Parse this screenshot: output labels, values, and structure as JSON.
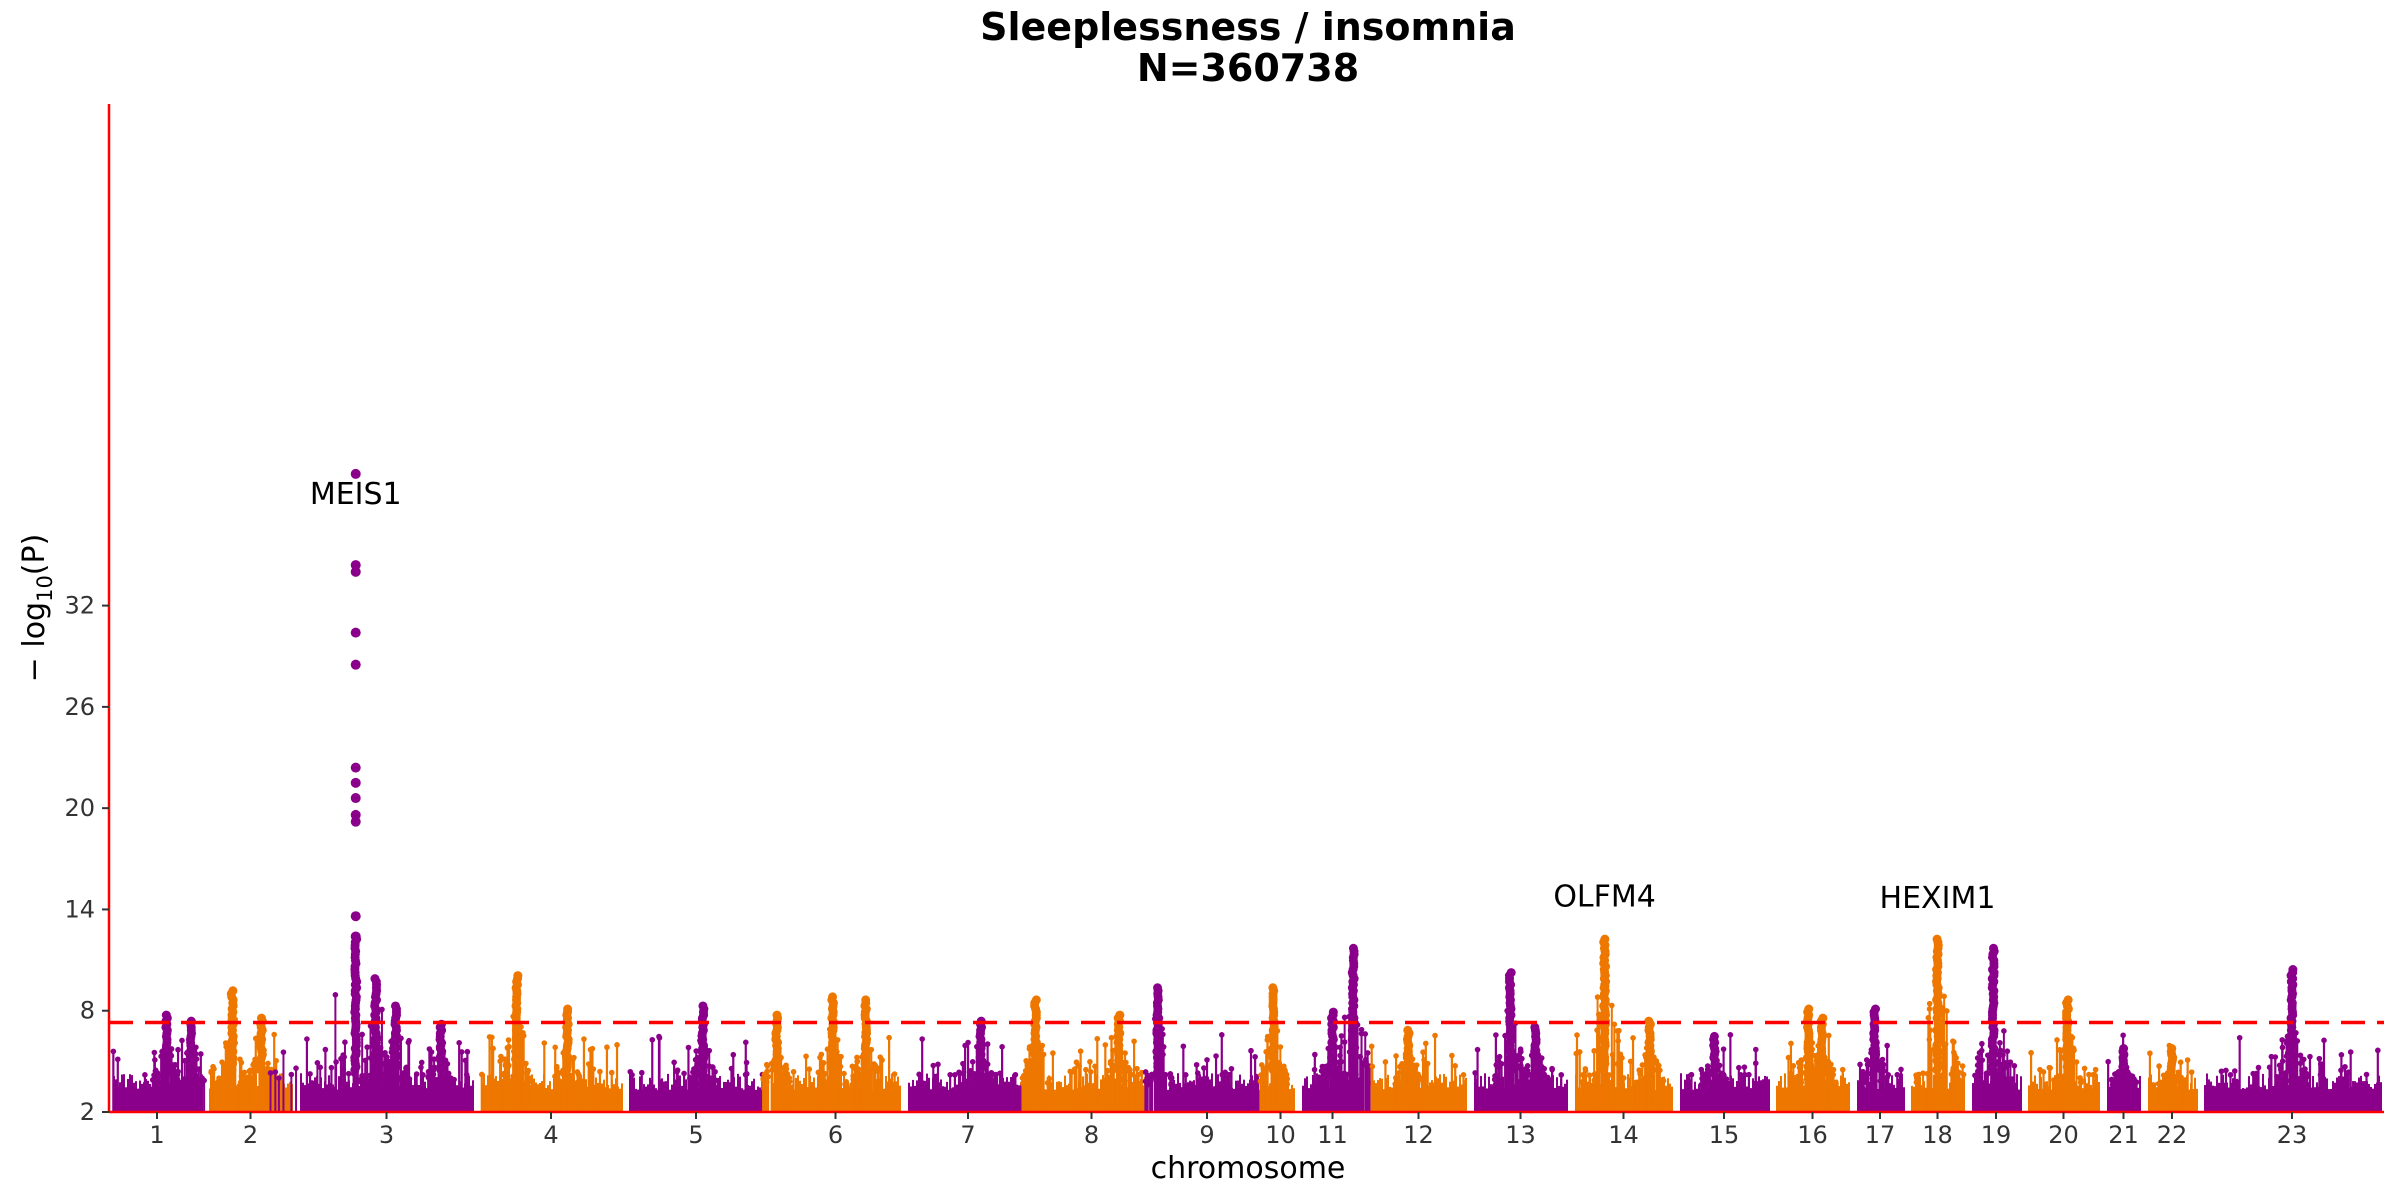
{
  "chart_data": {
    "type": "scatter",
    "subtype": "manhattan",
    "title": "Sleeplessness / insomnia",
    "subtitle": "N=360738",
    "xlabel": "chromosome",
    "ylabel": "− log10(P)",
    "ylabel_parts": {
      "prefix": "− log",
      "sub": "10",
      "suffix": "(P)"
    },
    "ylim": [
      2,
      40
    ],
    "yticks": [
      2,
      8,
      14,
      20,
      26,
      32
    ],
    "significance_threshold": 7.3,
    "threshold_line": "dashed",
    "colors": {
      "odd": "#8b008b",
      "even": "#ee7700",
      "threshold": "#ff0000",
      "axis": "#ff0000"
    },
    "grid": false,
    "chromosomes": [
      {
        "label": "1",
        "peaks": [
          {
            "pos": 0.6,
            "p": 7.8
          },
          {
            "pos": 0.85,
            "p": 7.4
          }
        ]
      },
      {
        "label": "2",
        "peaks": [
          {
            "pos": 0.3,
            "p": 9.3
          },
          {
            "pos": 0.62,
            "p": 7.6
          }
        ]
      },
      {
        "label": "3",
        "peaks": [
          {
            "pos": 0.33,
            "p": 39.8
          },
          {
            "pos": 0.44,
            "p": 9.9
          },
          {
            "pos": 0.55,
            "p": 8.4
          },
          {
            "pos": 0.8,
            "p": 7.3
          }
        ]
      },
      {
        "label": "4",
        "peaks": [
          {
            "pos": 0.27,
            "p": 10.1
          },
          {
            "pos": 0.61,
            "p": 8.1
          }
        ]
      },
      {
        "label": "5",
        "peaks": [
          {
            "pos": 0.55,
            "p": 8.3
          }
        ]
      },
      {
        "label": "6",
        "peaks": [
          {
            "pos": 0.07,
            "p": 7.9
          },
          {
            "pos": 0.48,
            "p": 8.9
          },
          {
            "pos": 0.72,
            "p": 8.8
          }
        ]
      },
      {
        "label": "7",
        "peaks": [
          {
            "pos": 0.6,
            "p": 7.4
          }
        ]
      },
      {
        "label": "8",
        "peaks": [
          {
            "pos": 0.03,
            "p": 8.7
          },
          {
            "pos": 0.73,
            "p": 7.9
          }
        ]
      },
      {
        "label": "9",
        "peaks": [
          {
            "pos": 0.06,
            "p": 9.4
          }
        ]
      },
      {
        "label": "10",
        "peaks": [
          {
            "pos": 0.3,
            "p": 9.5
          }
        ]
      },
      {
        "label": "11",
        "peaks": [
          {
            "pos": 0.5,
            "p": 8.0
          },
          {
            "pos": 0.8,
            "p": 11.8
          }
        ]
      },
      {
        "label": "12",
        "peaks": [
          {
            "pos": 0.4,
            "p": 6.9
          }
        ]
      },
      {
        "label": "13",
        "peaks": [
          {
            "pos": 0.4,
            "p": 10.3
          },
          {
            "pos": 0.65,
            "p": 7.1
          }
        ]
      },
      {
        "label": "14",
        "peaks": [
          {
            "pos": 0.32,
            "p": 13.0
          },
          {
            "pos": 0.75,
            "p": 7.5
          }
        ]
      },
      {
        "label": "15",
        "peaks": [
          {
            "pos": 0.4,
            "p": 6.6
          }
        ]
      },
      {
        "label": "16",
        "peaks": [
          {
            "pos": 0.45,
            "p": 8.2
          },
          {
            "pos": 0.62,
            "p": 7.7
          }
        ]
      },
      {
        "label": "17",
        "peaks": [
          {
            "pos": 0.4,
            "p": 8.1
          }
        ]
      },
      {
        "label": "18",
        "peaks": [
          {
            "pos": 0.5,
            "p": 12.9
          }
        ]
      },
      {
        "label": "19",
        "peaks": [
          {
            "pos": 0.45,
            "p": 11.7
          }
        ]
      },
      {
        "label": "20",
        "peaks": [
          {
            "pos": 0.55,
            "p": 8.7
          }
        ]
      },
      {
        "label": "21",
        "peaks": [
          {
            "pos": 0.5,
            "p": 5.9
          }
        ]
      },
      {
        "label": "22",
        "peaks": [
          {
            "pos": 0.5,
            "p": 5.8
          }
        ]
      },
      {
        "label": "23",
        "peaks": [
          {
            "pos": 0.5,
            "p": 10.5
          }
        ]
      }
    ],
    "annotations": [
      {
        "label": "MEIS1",
        "chrom": "3",
        "pos": 0.33,
        "p": 39.8
      },
      {
        "label": "OLFM4",
        "chrom": "14",
        "pos": 0.32,
        "p": 13.0
      },
      {
        "label": "HEXIM1",
        "chrom": "18",
        "pos": 0.5,
        "p": 12.9
      }
    ]
  }
}
